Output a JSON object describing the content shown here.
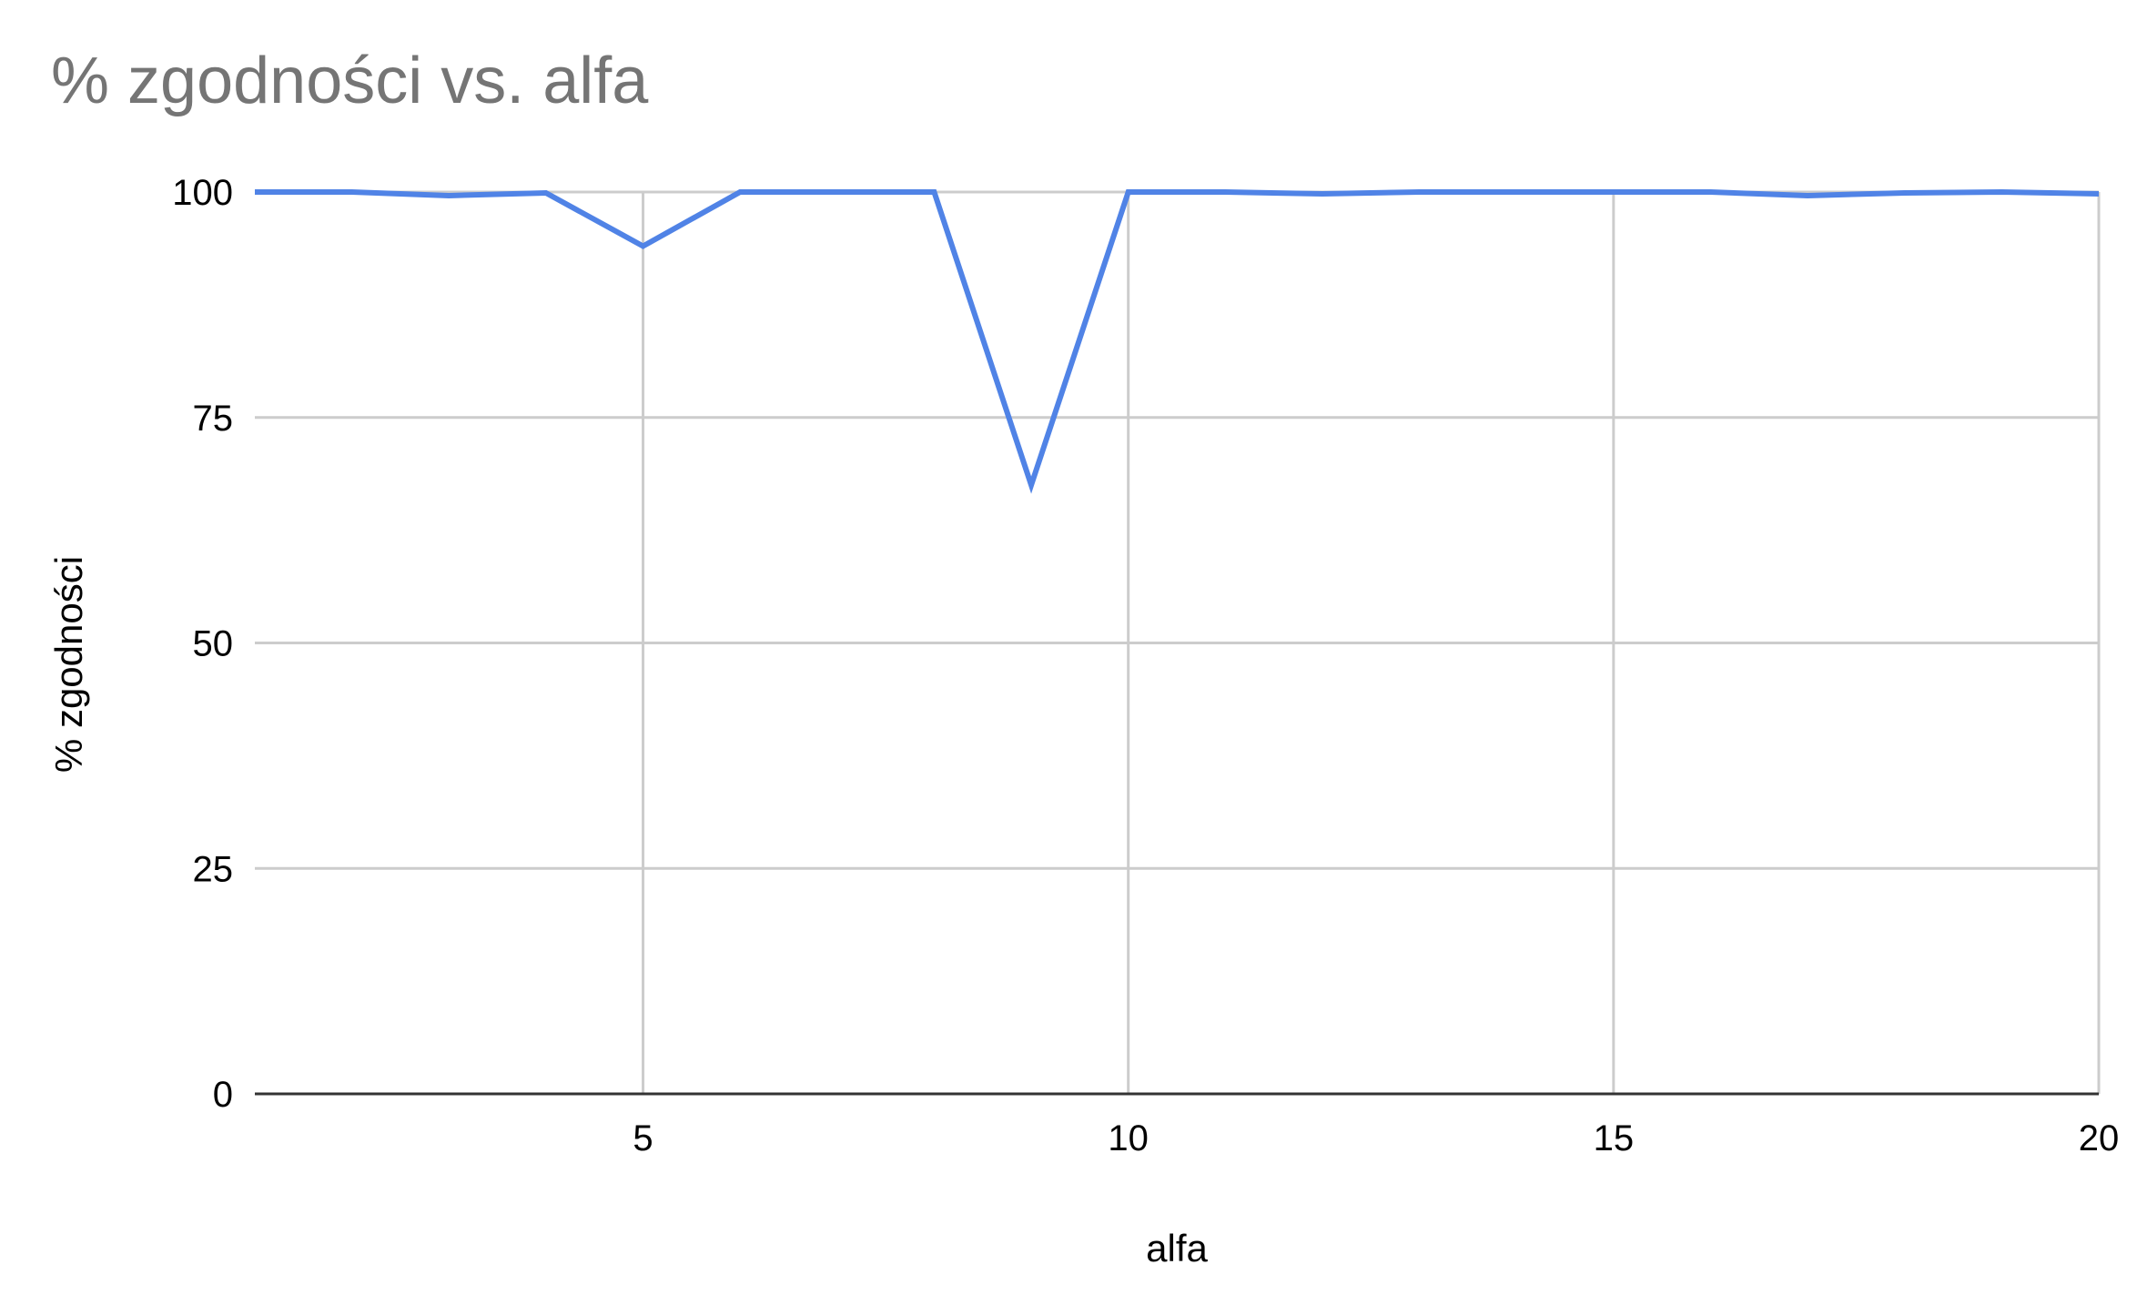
{
  "chart_data": {
    "type": "line",
    "title": "% zgodności vs. alfa",
    "xlabel": "alfa",
    "ylabel": "% zgodności",
    "xlim": [
      1,
      20
    ],
    "ylim": [
      0,
      100
    ],
    "x_ticks": [
      5,
      10,
      15,
      20
    ],
    "y_ticks": [
      0,
      25,
      50,
      75,
      100
    ],
    "grid": true,
    "series": [
      {
        "name": "% zgodności",
        "color": "#5083e6",
        "x": [
          1,
          2,
          3,
          4,
          5,
          6,
          7,
          8,
          9,
          10,
          11,
          12,
          13,
          14,
          15,
          16,
          17,
          18,
          19,
          20
        ],
        "values": [
          100,
          100,
          99.6,
          99.9,
          94,
          100,
          100,
          100,
          67.5,
          100,
          100,
          99.8,
          100,
          100,
          100,
          100,
          99.6,
          99.9,
          100,
          99.8
        ]
      }
    ]
  }
}
